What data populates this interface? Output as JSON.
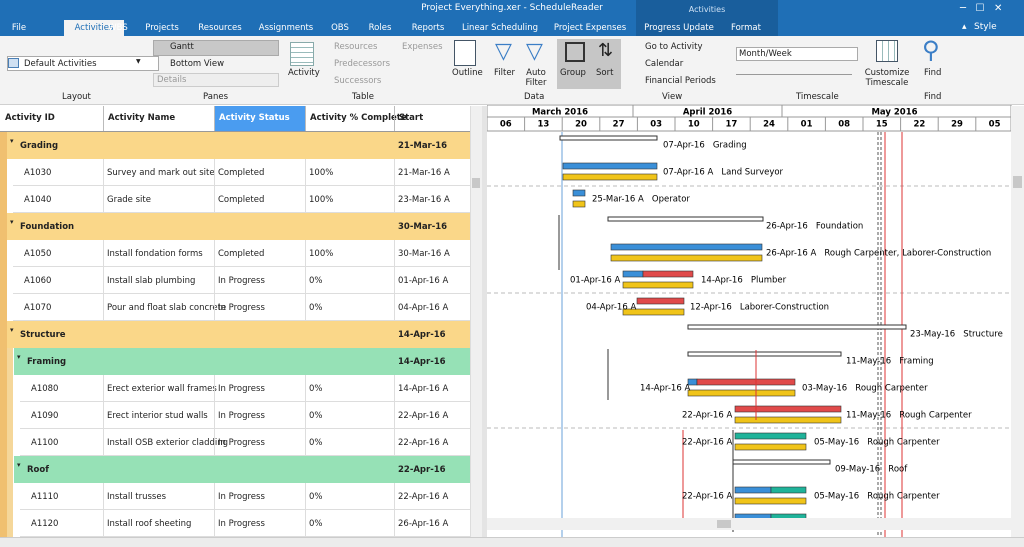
{
  "window": {
    "title": "Project Everything.xer - ScheduleReader",
    "context_tab": "Activities",
    "style": "Style"
  },
  "tabs": [
    "File",
    "Activities",
    "WBS",
    "Projects",
    "Resources",
    "Assignments",
    "OBS",
    "Roles",
    "Reports",
    "Linear Scheduling",
    "Project Expenses",
    "Progress Update",
    "Format"
  ],
  "ribbon": {
    "layout": {
      "dropdown": "Default Activities",
      "label": "Layout"
    },
    "panes": {
      "gantt": "Gantt",
      "bottom_view": "Bottom View",
      "details": "Details",
      "label": "Panes"
    },
    "table": {
      "activity": "Activity",
      "resources": "Resources",
      "predecessors": "Predecessors",
      "successors": "Successors",
      "expenses": "Expenses",
      "label": "Table"
    },
    "data": {
      "outline": "Outline",
      "filter": "Filter",
      "auto_filter": "Auto Filter",
      "label": "Data"
    },
    "group": "Group",
    "sort": "Sort",
    "view": {
      "go_to_activity": "Go to Activity",
      "calendar": "Calendar",
      "financial_periods": "Financial Periods",
      "label": "View"
    },
    "timescale": {
      "dropdown": "Month/Week",
      "label": "Timescale"
    },
    "customize_timescale": "Customize Timescale",
    "find": {
      "button": "Find",
      "label": "Find"
    }
  },
  "table": {
    "columns": [
      "Activity ID",
      "Activity Name",
      "Activity Status",
      "Activity % Complete",
      "Start"
    ],
    "rows": [
      [
        "Grading",
        "21-Mar-16"
      ],
      [
        "A1030",
        "Survey and mark out site",
        "Completed",
        "100%",
        "21-Mar-16 A"
      ],
      [
        "A1040",
        "Grade site",
        "Completed",
        "100%",
        "23-Mar-16 A"
      ],
      [
        "Foundation",
        "30-Mar-16"
      ],
      [
        "A1050",
        "Install fondation forms",
        "Completed",
        "100%",
        "30-Mar-16 A"
      ],
      [
        "A1060",
        "Install slab plumbing",
        "In Progress",
        "0%",
        "01-Apr-16 A"
      ],
      [
        "A1070",
        "Pour and float slab concrete",
        "In Progress",
        "0%",
        "04-Apr-16 A"
      ],
      [
        "Structure",
        "14-Apr-16"
      ],
      [
        "Framing",
        "14-Apr-16"
      ],
      [
        "A1080",
        "Erect exterior wall frames",
        "In Progress",
        "0%",
        "14-Apr-16 A"
      ],
      [
        "A1090",
        "Erect interior stud walls",
        "In Progress",
        "0%",
        "22-Apr-16 A"
      ],
      [
        "A1100",
        "Install OSB exterior cladding",
        "In Progress",
        "0%",
        "22-Apr-16 A"
      ],
      [
        "Roof",
        "22-Apr-16"
      ],
      [
        "A1110",
        "Install trusses",
        "In Progress",
        "0%",
        "22-Apr-16 A"
      ],
      [
        "A1120",
        "Install roof sheeting",
        "In Progress",
        "0%",
        "26-Apr-16 A"
      ]
    ]
  },
  "gantt": {
    "months": [
      "March 2016",
      "April 2016",
      "May 2016"
    ],
    "weeks": [
      "06",
      "13",
      "20",
      "27",
      "03",
      "10",
      "17",
      "24",
      "01",
      "08",
      "15",
      "22",
      "29",
      "05"
    ],
    "labels": [
      [
        "07-Apr-16   Grading"
      ],
      [
        "07-Apr-16 A   Land Surveyor"
      ],
      [
        "25-Mar-16 A   Operator"
      ],
      [
        "26-Apr-16   Foundation"
      ],
      [
        "26-Apr-16 A   Rough Carpenter, Laborer-Construction"
      ],
      [
        "01-Apr-16 A",
        "14-Apr-16   Plumber"
      ],
      [
        "04-Apr-16 A",
        "12-Apr-16   Laborer-Construction"
      ],
      [
        "23-May-16   Structure"
      ],
      [
        "11-May-16   Framing"
      ],
      [
        "14-Apr-16 A",
        "03-May-16   Rough Carpenter"
      ],
      [
        "22-Apr-16 A",
        "11-May-16   Rough Carpenter"
      ],
      [
        "22-Apr-16 A",
        "05-May-16   Rough Carpenter"
      ],
      [
        "09-May-16   Roof"
      ],
      [
        "22-Apr-16 A",
        "05-May-16   Rough Carpenter"
      ]
    ]
  }
}
